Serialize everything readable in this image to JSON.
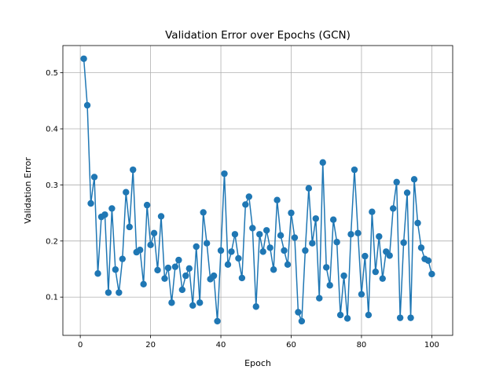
{
  "chart_data": {
    "type": "line",
    "title": "Validation Error over Epochs (GCN)",
    "xlabel": "Epoch",
    "ylabel": "Validation Error",
    "xlim": [
      -4.95,
      105.95
    ],
    "ylim": [
      0.0317,
      0.5485
    ],
    "xticks": [
      0,
      20,
      40,
      60,
      80,
      100
    ],
    "yticks": [
      0.1,
      0.2,
      0.3,
      0.4,
      0.5
    ],
    "xtick_labels": [
      "0",
      "20",
      "40",
      "60",
      "80",
      "100"
    ],
    "ytick_labels": [
      "0.1",
      "0.2",
      "0.3",
      "0.4",
      "0.5"
    ],
    "grid": true,
    "series": [
      {
        "color": "#1f77b4",
        "marker": "circle",
        "x": [
          1,
          2,
          3,
          4,
          5,
          6,
          7,
          8,
          9,
          10,
          11,
          12,
          13,
          14,
          15,
          16,
          17,
          18,
          19,
          20,
          21,
          22,
          23,
          24,
          25,
          26,
          27,
          28,
          29,
          30,
          31,
          32,
          33,
          34,
          35,
          36,
          37,
          38,
          39,
          40,
          41,
          42,
          43,
          44,
          45,
          46,
          47,
          48,
          49,
          50,
          51,
          52,
          53,
          54,
          55,
          56,
          57,
          58,
          59,
          60,
          61,
          62,
          63,
          64,
          65,
          66,
          67,
          68,
          69,
          70,
          71,
          72,
          73,
          74,
          75,
          76,
          77,
          78,
          79,
          80,
          81,
          82,
          83,
          84,
          85,
          86,
          87,
          88,
          89,
          90,
          91,
          92,
          93,
          94,
          95,
          96,
          97,
          98,
          99,
          100
        ],
        "y": [
          0.525,
          0.442,
          0.267,
          0.314,
          0.142,
          0.243,
          0.247,
          0.108,
          0.258,
          0.149,
          0.108,
          0.168,
          0.287,
          0.225,
          0.327,
          0.18,
          0.184,
          0.123,
          0.264,
          0.193,
          0.214,
          0.148,
          0.244,
          0.133,
          0.152,
          0.09,
          0.154,
          0.166,
          0.113,
          0.138,
          0.151,
          0.085,
          0.19,
          0.09,
          0.251,
          0.196,
          0.132,
          0.138,
          0.057,
          0.183,
          0.32,
          0.158,
          0.181,
          0.212,
          0.169,
          0.134,
          0.265,
          0.279,
          0.223,
          0.083,
          0.212,
          0.181,
          0.219,
          0.188,
          0.149,
          0.273,
          0.21,
          0.183,
          0.158,
          0.25,
          0.206,
          0.073,
          0.057,
          0.183,
          0.294,
          0.196,
          0.24,
          0.098,
          0.34,
          0.153,
          0.121,
          0.238,
          0.198,
          0.068,
          0.138,
          0.062,
          0.212,
          0.327,
          0.214,
          0.105,
          0.173,
          0.068,
          0.252,
          0.145,
          0.208,
          0.133,
          0.181,
          0.174,
          0.258,
          0.305,
          0.063,
          0.197,
          0.286,
          0.063,
          0.31,
          0.232,
          0.188,
          0.168,
          0.165,
          0.141
        ]
      }
    ]
  }
}
